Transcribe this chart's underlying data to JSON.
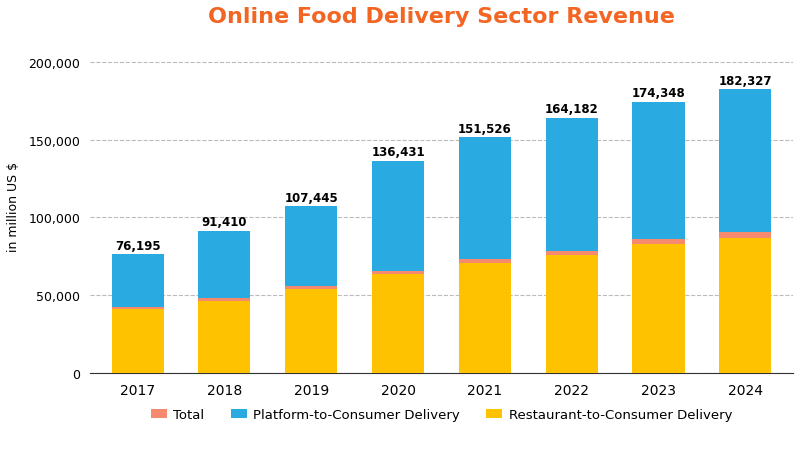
{
  "title": "Online Food Delivery Sector Revenue",
  "ylabel": "in million US $",
  "years": [
    2017,
    2018,
    2019,
    2020,
    2021,
    2022,
    2023,
    2024
  ],
  "totals": [
    76195,
    91410,
    107445,
    136431,
    151526,
    164182,
    174348,
    182327
  ],
  "restaurant_to_consumer": [
    41000,
    46500,
    54000,
    63500,
    71000,
    76000,
    83000,
    87000
  ],
  "total_segment": [
    1500,
    1800,
    2000,
    2200,
    2300,
    2500,
    3000,
    3500
  ],
  "platform_to_consumer_color": "#29ABE2",
  "restaurant_to_consumer_color": "#FFC200",
  "total_color": "#F58A6E",
  "title_color": "#F26522",
  "background_color": "#FFFFFF",
  "ylim": [
    0,
    215000
  ],
  "yticks": [
    0,
    50000,
    100000,
    150000,
    200000
  ],
  "legend_labels": [
    "Total",
    "Platform-to-Consumer Delivery",
    "Restaurant-to-Consumer Delivery"
  ],
  "bar_width": 0.6
}
